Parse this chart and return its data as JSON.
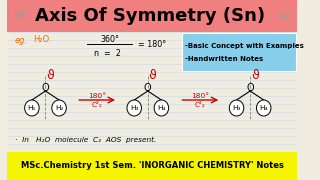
{
  "title": "Axis Of Symmetry (Sn)",
  "title_bg": "#f08080",
  "bullet1": "-Basic Concept with Examples",
  "bullet2": "-Handwritten Notes",
  "bullet_bg": "#87ceeb",
  "eg_color": "#ff6600",
  "bottom_text": "MSc.Chemistry 1st Sem. 'INORGANIC CHEMISTRY' Notes",
  "bottom_bg": "#f5f500",
  "note_line": "In   H₂O  molecule  C₂  AOS  present.",
  "mol_bg": "#f0ede0",
  "arrow_color": "#cc0000",
  "ruled_line_color": "#c8d8e8"
}
